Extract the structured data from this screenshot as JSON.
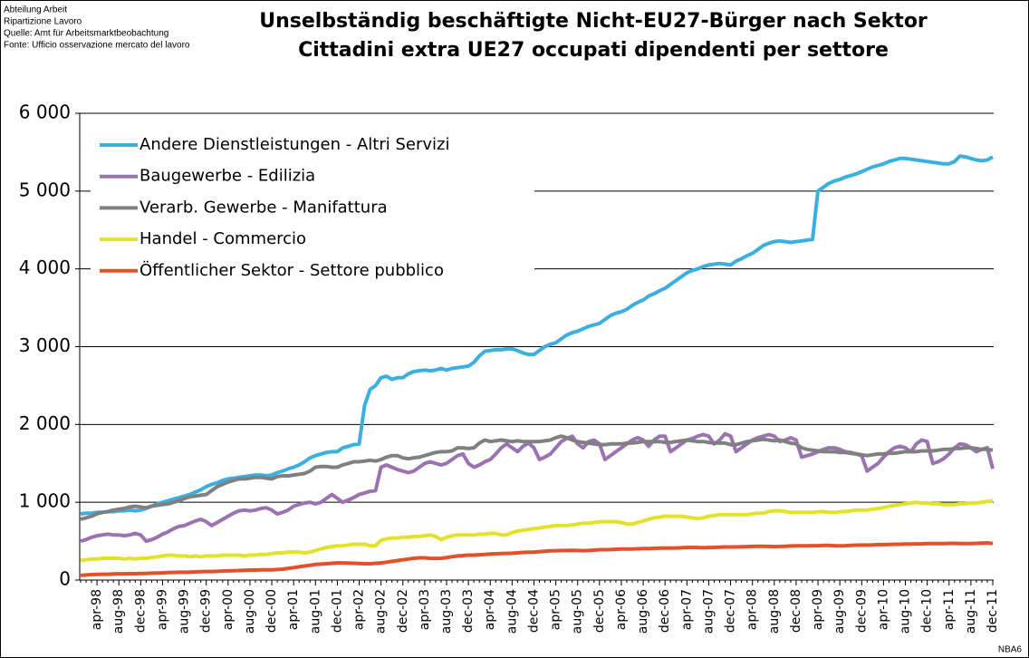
{
  "chart_data": {
    "type": "line",
    "source_notes": [
      "Abteilung Arbeit",
      "Ripartizione Lavoro",
      "Quelle: Amt für Arbeitsmarktbeobachtung",
      "Fonte: Ufficio osservazione mercato del lavoro"
    ],
    "title": "Unselbständig beschäftigte Nicht-EU27-Bürger nach Sektor",
    "subtitle": "Cittadini extra UE27 occupati dipendenti per settore",
    "code": "NBA6",
    "legend": "upper left",
    "grid": true,
    "ylim": [
      0,
      6000
    ],
    "yticks": [
      0,
      {
        "value": 1000,
        "label": "1 000"
      },
      {
        "value": 2000,
        "label": "2 000"
      },
      {
        "value": 3000,
        "label": "3 000"
      },
      {
        "value": 4000,
        "label": "4 000"
      },
      {
        "value": 5000,
        "label": "5 000"
      },
      {
        "value": 6000,
        "label": "6 000"
      }
    ],
    "categories": [
      null,
      null,
      null,
      "apr-98",
      null,
      null,
      null,
      "aug-98",
      null,
      null,
      null,
      "dec-98",
      null,
      null,
      null,
      "apr-99",
      null,
      null,
      null,
      "aug-99",
      null,
      null,
      null,
      "dec-99",
      null,
      null,
      null,
      "apr-00",
      null,
      null,
      null,
      "aug-00",
      null,
      null,
      null,
      "dec-00",
      null,
      null,
      null,
      "apr-01",
      null,
      null,
      null,
      "aug-01",
      null,
      null,
      null,
      "dec-01",
      null,
      null,
      null,
      "apr-02",
      null,
      null,
      null,
      "aug-02",
      null,
      null,
      null,
      "dec-02",
      null,
      null,
      null,
      "apr-03",
      null,
      null,
      null,
      "aug-03",
      null,
      null,
      null,
      "dec-03",
      null,
      null,
      null,
      "apr-04",
      null,
      null,
      null,
      "aug-04",
      null,
      null,
      null,
      "dec-04",
      null,
      null,
      null,
      "apr-05",
      null,
      null,
      null,
      "aug-05",
      null,
      null,
      null,
      "dec-05",
      null,
      null,
      null,
      "apr-06",
      null,
      null,
      null,
      "aug-06",
      null,
      null,
      null,
      "dec-06",
      null,
      null,
      null,
      "apr-07",
      null,
      null,
      null,
      "aug-07",
      null,
      null,
      null,
      "dec-07",
      null,
      null,
      null,
      "apr-08",
      null,
      null,
      null,
      "aug-08",
      null,
      null,
      null,
      "dec-08",
      null,
      null,
      null,
      "apr-09",
      null,
      null,
      null,
      "aug-09",
      null,
      null,
      null,
      "dec-09",
      null,
      null,
      null,
      "apr-10",
      null,
      null,
      null,
      "aug-10",
      null,
      null,
      null,
      "dec-10",
      null,
      null,
      null,
      "apr-11",
      null,
      null,
      null,
      "aug-11",
      null,
      null,
      null,
      "dec-11"
    ],
    "series": [
      {
        "name": "Andere Dienstleistungen - Altri Servizi",
        "color": "#3bb0e0",
        "values": [
          850,
          860,
          860,
          870,
          870,
          880,
          880,
          890,
          890,
          900,
          890,
          900,
          920,
          950,
          980,
          1000,
          1020,
          1040,
          1060,
          1080,
          1100,
          1130,
          1160,
          1200,
          1230,
          1250,
          1280,
          1300,
          1310,
          1320,
          1330,
          1340,
          1350,
          1350,
          1340,
          1350,
          1380,
          1400,
          1430,
          1450,
          1480,
          1520,
          1570,
          1600,
          1620,
          1640,
          1650,
          1650,
          1700,
          1720,
          1740,
          1750,
          2250,
          2450,
          2500,
          2600,
          2620,
          2580,
          2600,
          2600,
          2650,
          2680,
          2690,
          2700,
          2690,
          2700,
          2720,
          2700,
          2720,
          2730,
          2740,
          2750,
          2800,
          2880,
          2940,
          2950,
          2960,
          2960,
          2970,
          2970,
          2950,
          2920,
          2900,
          2900,
          2950,
          3000,
          3030,
          3050,
          3100,
          3150,
          3180,
          3200,
          3230,
          3260,
          3280,
          3300,
          3350,
          3400,
          3430,
          3450,
          3480,
          3530,
          3570,
          3600,
          3650,
          3680,
          3720,
          3750,
          3800,
          3850,
          3900,
          3950,
          3980,
          4000,
          4030,
          4050,
          4060,
          4070,
          4060,
          4050,
          4100,
          4130,
          4170,
          4200,
          4250,
          4300,
          4330,
          4350,
          4360,
          4350,
          4340,
          4350,
          4360,
          4370,
          4380,
          5000,
          5050,
          5100,
          5130,
          5150,
          5180,
          5200,
          5220,
          5250,
          5280,
          5310,
          5330,
          5350,
          5380,
          5400,
          5420,
          5420,
          5410,
          5400,
          5390,
          5380,
          5370,
          5360,
          5350,
          5350,
          5380,
          5450,
          5440,
          5420,
          5400,
          5390,
          5400,
          5440
        ]
      },
      {
        "name": "Baugewerbe - Edilizia",
        "color": "#9b72b2",
        "values": [
          500,
          520,
          550,
          570,
          580,
          590,
          580,
          580,
          570,
          580,
          600,
          580,
          500,
          520,
          550,
          590,
          620,
          660,
          690,
          700,
          730,
          760,
          780,
          750,
          700,
          740,
          780,
          820,
          860,
          890,
          900,
          890,
          900,
          920,
          930,
          900,
          850,
          870,
          900,
          950,
          970,
          990,
          1000,
          980,
          1000,
          1050,
          1100,
          1050,
          1000,
          1030,
          1060,
          1100,
          1120,
          1140,
          1150,
          1450,
          1480,
          1450,
          1420,
          1400,
          1380,
          1400,
          1450,
          1500,
          1520,
          1500,
          1480,
          1500,
          1550,
          1600,
          1620,
          1500,
          1450,
          1480,
          1520,
          1550,
          1620,
          1700,
          1750,
          1700,
          1650,
          1720,
          1760,
          1700,
          1550,
          1580,
          1620,
          1700,
          1780,
          1820,
          1850,
          1750,
          1700,
          1780,
          1800,
          1750,
          1550,
          1600,
          1650,
          1700,
          1750,
          1800,
          1830,
          1800,
          1720,
          1800,
          1850,
          1850,
          1650,
          1700,
          1750,
          1800,
          1820,
          1850,
          1870,
          1850,
          1750,
          1800,
          1880,
          1850,
          1650,
          1700,
          1750,
          1800,
          1830,
          1850,
          1870,
          1850,
          1780,
          1800,
          1830,
          1800,
          1580,
          1600,
          1620,
          1650,
          1680,
          1700,
          1700,
          1680,
          1650,
          1640,
          1620,
          1600,
          1400,
          1450,
          1500,
          1580,
          1650,
          1700,
          1720,
          1700,
          1650,
          1750,
          1800,
          1780,
          1500,
          1520,
          1560,
          1620,
          1700,
          1750,
          1740,
          1700,
          1650,
          1680,
          1700,
          1430
        ]
      },
      {
        "name": "Verarb. Gewerbe - Manifattura",
        "color": "#808080",
        "values": [
          780,
          800,
          820,
          850,
          870,
          880,
          900,
          910,
          920,
          940,
          950,
          940,
          930,
          950,
          960,
          970,
          980,
          1000,
          1020,
          1050,
          1070,
          1080,
          1090,
          1100,
          1150,
          1200,
          1230,
          1260,
          1280,
          1300,
          1300,
          1310,
          1320,
          1320,
          1310,
          1300,
          1330,
          1340,
          1340,
          1350,
          1360,
          1370,
          1400,
          1450,
          1460,
          1460,
          1450,
          1450,
          1480,
          1500,
          1520,
          1520,
          1530,
          1540,
          1530,
          1550,
          1580,
          1600,
          1600,
          1570,
          1560,
          1570,
          1580,
          1600,
          1620,
          1640,
          1650,
          1650,
          1660,
          1700,
          1700,
          1690,
          1700,
          1760,
          1800,
          1780,
          1790,
          1800,
          1790,
          1780,
          1790,
          1780,
          1780,
          1780,
          1780,
          1790,
          1800,
          1830,
          1850,
          1830,
          1800,
          1780,
          1770,
          1760,
          1750,
          1740,
          1740,
          1750,
          1750,
          1750,
          1760,
          1760,
          1770,
          1780,
          1780,
          1780,
          1780,
          1770,
          1770,
          1780,
          1790,
          1800,
          1790,
          1780,
          1780,
          1770,
          1760,
          1760,
          1760,
          1740,
          1740,
          1760,
          1780,
          1790,
          1800,
          1810,
          1800,
          1790,
          1800,
          1780,
          1760,
          1750,
          1700,
          1680,
          1670,
          1660,
          1650,
          1650,
          1650,
          1640,
          1640,
          1630,
          1620,
          1610,
          1600,
          1610,
          1620,
          1620,
          1630,
          1630,
          1640,
          1650,
          1650,
          1650,
          1660,
          1660,
          1660,
          1670,
          1680,
          1680,
          1690,
          1690,
          1700,
          1700,
          1690,
          1680,
          1680,
          1670
        ]
      },
      {
        "name": "Handel - Commercio",
        "color": "#e2e22a",
        "values": [
          250,
          260,
          270,
          270,
          280,
          280,
          280,
          280,
          270,
          280,
          270,
          280,
          280,
          290,
          300,
          310,
          320,
          320,
          310,
          310,
          300,
          310,
          300,
          310,
          310,
          310,
          320,
          320,
          320,
          320,
          310,
          320,
          320,
          330,
          330,
          340,
          350,
          350,
          360,
          360,
          360,
          350,
          360,
          380,
          400,
          420,
          430,
          440,
          440,
          450,
          460,
          460,
          460,
          440,
          440,
          510,
          530,
          540,
          540,
          550,
          550,
          560,
          560,
          570,
          580,
          560,
          520,
          550,
          570,
          580,
          580,
          580,
          580,
          590,
          590,
          600,
          600,
          580,
          580,
          610,
          630,
          640,
          650,
          660,
          670,
          680,
          690,
          700,
          700,
          700,
          710,
          720,
          730,
          730,
          740,
          750,
          750,
          750,
          750,
          740,
          720,
          720,
          740,
          760,
          780,
          800,
          810,
          820,
          820,
          820,
          820,
          810,
          800,
          790,
          800,
          820,
          830,
          840,
          840,
          840,
          840,
          840,
          840,
          850,
          860,
          860,
          880,
          890,
          890,
          880,
          870,
          870,
          870,
          870,
          870,
          880,
          880,
          870,
          870,
          880,
          880,
          890,
          900,
          900,
          900,
          910,
          920,
          930,
          950,
          960,
          970,
          980,
          990,
          1000,
          990,
          990,
          980,
          980,
          970,
          970,
          970,
          980,
          980,
          990,
          990,
          1000,
          1010,
          1020
        ]
      },
      {
        "name": "Öffentlicher Sektor - Settore pubblico",
        "color": "#e2512a",
        "values": [
          60,
          65,
          70,
          72,
          75,
          75,
          78,
          80,
          80,
          82,
          82,
          85,
          85,
          88,
          90,
          92,
          95,
          98,
          100,
          100,
          102,
          105,
          108,
          110,
          110,
          112,
          115,
          118,
          120,
          122,
          125,
          128,
          128,
          130,
          130,
          132,
          135,
          140,
          150,
          160,
          170,
          180,
          190,
          200,
          205,
          210,
          215,
          220,
          220,
          218,
          215,
          212,
          210,
          210,
          215,
          220,
          230,
          240,
          250,
          260,
          270,
          280,
          285,
          285,
          280,
          278,
          280,
          290,
          300,
          310,
          315,
          320,
          320,
          325,
          330,
          335,
          338,
          340,
          342,
          345,
          350,
          355,
          358,
          360,
          365,
          370,
          375,
          378,
          380,
          380,
          382,
          380,
          378,
          380,
          385,
          390,
          390,
          392,
          395,
          398,
          400,
          400,
          402,
          404,
          405,
          408,
          410,
          410,
          410,
          412,
          415,
          418,
          420,
          418,
          415,
          418,
          420,
          422,
          425,
          425,
          425,
          428,
          430,
          432,
          435,
          435,
          432,
          430,
          432,
          435,
          438,
          440,
          440,
          440,
          442,
          442,
          445,
          445,
          442,
          440,
          442,
          445,
          448,
          450,
          450,
          452,
          455,
          455,
          458,
          460,
          460,
          462,
          462,
          465,
          465,
          468,
          468,
          470,
          470,
          472,
          472,
          470,
          468,
          470,
          472,
          475,
          478,
          470
        ]
      }
    ]
  }
}
